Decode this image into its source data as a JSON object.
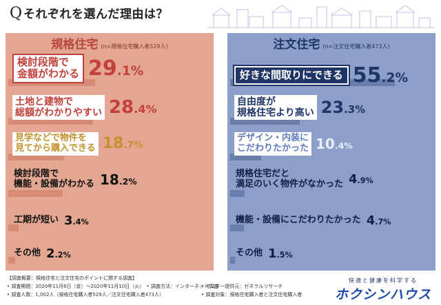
{
  "title": {
    "q": "Q",
    "text": "それぞれを選んだ理由は？"
  },
  "chart_data": [
    {
      "type": "bar",
      "title": "規格住宅",
      "note": "(n=規格住宅購入者529人)",
      "unit": "%",
      "categories": [
        "検討段階で金額がわかる",
        "土地と建物で総額がわかりやすい",
        "見学などで物件を見てから購入できる",
        "検討段階で機能・設備がわかる",
        "工期が短い",
        "その他"
      ],
      "values": [
        29.1,
        28.4,
        18.7,
        18.2,
        3.4,
        2.2
      ],
      "labels": [
        [
          "検討段階で",
          "金額がわかる"
        ],
        [
          "土地と建物で",
          "総額がわかりやすい"
        ],
        [
          "見学などで物件を",
          "見てから購入できる"
        ],
        [
          "検討段階で",
          "機能・設備がわかる"
        ],
        [
          "工期が短い"
        ],
        [
          "その他"
        ]
      ],
      "value_text": [
        [
          "29",
          ".1%"
        ],
        [
          "28",
          ".4%"
        ],
        [
          "18",
          ".7%"
        ],
        [
          "18",
          ".2%"
        ],
        [
          "3",
          ".4%"
        ],
        [
          "2",
          ".2%"
        ]
      ]
    },
    {
      "type": "bar",
      "title": "注文住宅",
      "note": "(n=注文住宅購入者473人)",
      "unit": "%",
      "categories": [
        "好きな間取りにできる",
        "自由度が規格住宅より高い",
        "デザイン・内装にこだわりたかった",
        "規格住宅だと満足のいく物件がなかった",
        "機能・設備にこだわりたかった",
        "その他"
      ],
      "values": [
        55.2,
        23.3,
        10.4,
        4.9,
        4.7,
        1.5
      ],
      "labels": [
        [
          "好きな間取りにできる"
        ],
        [
          "自由度が",
          "規格住宅より高い"
        ],
        [
          "デザイン・内装に",
          "こだわりたかった"
        ],
        [
          "規格住宅だと",
          "満足のいく物件がなかった"
        ],
        [
          "機能・設備にこだわりたかった"
        ],
        [
          "その他"
        ]
      ],
      "value_text": [
        [
          "55",
          ".2%"
        ],
        [
          "23",
          ".3%"
        ],
        [
          "10",
          ".4%"
        ],
        [
          "4",
          ".9%"
        ],
        [
          "4",
          ".7%"
        ],
        [
          "1",
          ".5%"
        ]
      ]
    }
  ],
  "footer": {
    "lines": [
      "【調査概要：規格住宅と注文住宅のポイントに関する調査】",
      "• 調査期間：2020年11月6日（金）〜2020年11月10日（火）　• 調査方法：インターネット調査",
      "• 調査人数：1,002人（規格住宅購入者529人／注文住宅購入者473人）"
    ],
    "lines2": [
      "• モニター提供元：ゼネラルリサーチ",
      "• 調査対象：規格住宅購入者と注文住宅購入者"
    ]
  },
  "brand": {
    "tag": "快適と健康を科学する",
    "name": "ホクシンハウス"
  },
  "colors": {
    "left_bg": "#e3a690",
    "right_bg": "#8b9fc9",
    "red": "#c4403a",
    "gold": "#c2922e",
    "navy": "#1f3567"
  }
}
